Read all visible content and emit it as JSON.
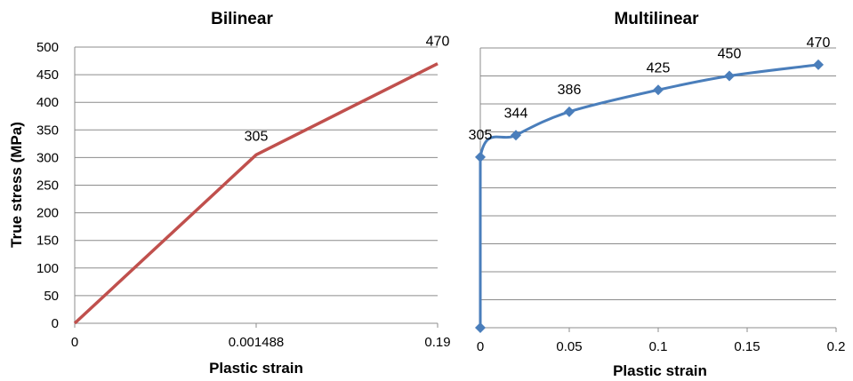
{
  "chart_data": [
    {
      "type": "line",
      "title": "Bilinear",
      "xlabel": "Plastic strain",
      "ylabel": "True stress (MPa)",
      "x_scale": "categorical",
      "x_tick_labels": [
        "0",
        "0.001488",
        "0.19"
      ],
      "y_tick_labels": [
        "0",
        "50",
        "100",
        "150",
        "200",
        "250",
        "300",
        "350",
        "400",
        "450",
        "500"
      ],
      "ylim": [
        0,
        500
      ],
      "grid": "horizontal",
      "color": "#c0504d",
      "series": [
        {
          "x": [
            "0",
            "0.001488",
            "0.19"
          ],
          "values": [
            0,
            305,
            470
          ]
        }
      ],
      "data_labels": [
        {
          "index": 1,
          "text": "305"
        },
        {
          "index": 2,
          "text": "470"
        }
      ]
    },
    {
      "type": "scatter",
      "title": "Multilinear",
      "xlabel": "Plastic strain",
      "ylabel": "",
      "x_tick_labels": [
        "0",
        "0.05",
        "0.1",
        "0.15",
        "0.2"
      ],
      "xlim": [
        0,
        0.2
      ],
      "ylim": [
        0,
        500
      ],
      "grid": "horizontal",
      "smooth": true,
      "marker": "diamond",
      "color": "#4a7ebb",
      "series": [
        {
          "x": [
            0,
            0,
            0.02,
            0.05,
            0.1,
            0.14,
            0.19
          ],
          "y": [
            0,
            305,
            344,
            386,
            425,
            450,
            470
          ]
        }
      ],
      "data_labels": [
        "305",
        "344",
        "386",
        "425",
        "450",
        "470"
      ]
    }
  ]
}
